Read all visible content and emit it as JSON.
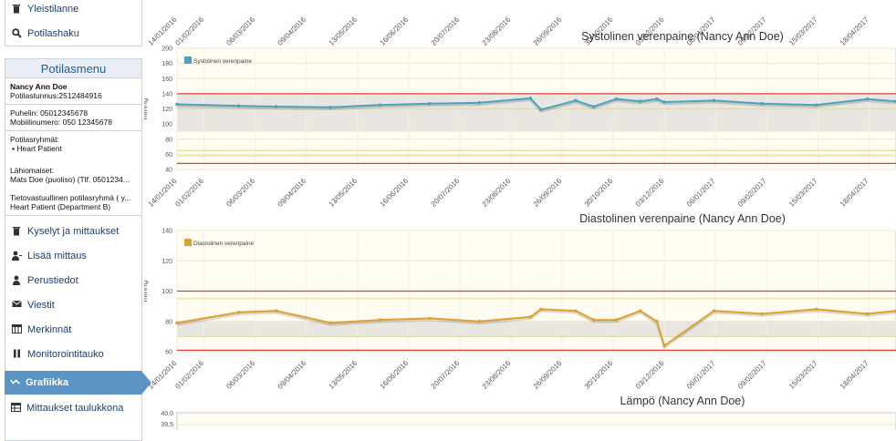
{
  "sidebar": {
    "top_items": [
      {
        "label": "Yleistilanne",
        "icon": "trash-icon"
      },
      {
        "label": "Potilashaku",
        "icon": "search-icon"
      }
    ],
    "patient_menu": {
      "title": "Potilasmenu",
      "name": "Nancy Ann Doe",
      "ssn": "Potilastunnus:2512484916",
      "phone": "Puhelin: 05012345678",
      "mobile": "Mobiilinumero: 050 12345678",
      "groups_label": "Potilasryhmät:",
      "group": "Heart Patient",
      "contacts_label": "Lähiomaiset:",
      "contact": "Mats Doe (puoliso) (Tlf. 0501234...",
      "responsible_label": "Tietovastuullinen potilasryhmä ( y...",
      "responsible": "Heart Patient (Department B)"
    },
    "items": [
      {
        "label": "Kyselyt ja mittaukset",
        "icon": "trash-icon"
      },
      {
        "label": "Lisää mittaus",
        "icon": "person-add-icon"
      },
      {
        "label": "Perustiedot",
        "icon": "person-icon"
      },
      {
        "label": "Viestit",
        "icon": "envelope-icon"
      },
      {
        "label": "Merkinnät",
        "icon": "notes-icon"
      },
      {
        "label": "Monitorointitauko",
        "icon": "pause-icon"
      },
      {
        "label": "Grafiikka",
        "icon": "chart-line-icon"
      },
      {
        "label": "Mittaukset taulukkona",
        "icon": "table-icon"
      }
    ]
  },
  "chart_data": [
    {
      "type": "line",
      "title": "Systolinen verenpaine (Nancy Ann Doe)",
      "ylabel": "mmHg",
      "legend": "Systolinen verenpaine",
      "legend_position": "top-left",
      "color": "#4aa3bf",
      "ylim": [
        40,
        200
      ],
      "yticks": [
        40,
        60,
        80,
        100,
        120,
        140,
        160,
        180,
        200
      ],
      "reference_lines": [
        {
          "value": 140,
          "color": "#d94040"
        },
        {
          "value": 48,
          "color": "#d94040"
        },
        {
          "value": 120,
          "color": "#f0e060"
        },
        {
          "value": 65,
          "color": "#f0e060"
        },
        {
          "value": 58,
          "color": "#f0e060"
        }
      ],
      "normal_band": [
        90,
        140
      ],
      "x_tick_labels": [
        "14/01/2016",
        "01/02/2016",
        "06/03/2016",
        "09/04/2016",
        "13/05/2016",
        "16/06/2016",
        "20/07/2016",
        "23/08/2016",
        "26/09/2016",
        "30/10/2016",
        "03/12/2016",
        "06/01/2017",
        "09/02/2017",
        "15/03/2017",
        "18/04/2017"
      ],
      "x": [
        "2016-01-14",
        "2016-02-24",
        "2016-03-20",
        "2016-04-25",
        "2016-05-28",
        "2016-06-30",
        "2016-08-02",
        "2016-09-05",
        "2016-09-12",
        "2016-10-05",
        "2016-10-17",
        "2016-11-01",
        "2016-11-17",
        "2016-11-28",
        "2016-12-03",
        "2017-01-05",
        "2017-02-06",
        "2017-03-14",
        "2017-04-17",
        "2017-05-06"
      ],
      "values": [
        126,
        124,
        123,
        122,
        125,
        127,
        128,
        134,
        119,
        131,
        123,
        133,
        130,
        133,
        129,
        131,
        127,
        125,
        133,
        130
      ]
    },
    {
      "type": "line",
      "title": "Diastolinen verenpaine (Nancy Ann Doe)",
      "ylabel": "mmHg",
      "legend": "Diastolinen verenpaine",
      "legend_position": "top-left",
      "color": "#e0a030",
      "ylim": [
        60,
        140
      ],
      "yticks": [
        60,
        80,
        100,
        120,
        140
      ],
      "reference_lines": [
        {
          "value": 100,
          "color": "#d94040"
        },
        {
          "value": 61,
          "color": "#d94040"
        },
        {
          "value": 95,
          "color": "#f0e060"
        },
        {
          "value": 70,
          "color": "#f0e060"
        }
      ],
      "normal_band": [
        70,
        80
      ],
      "x_tick_labels": [
        "14/01/2016",
        "01/02/2016",
        "06/03/2016",
        "09/04/2016",
        "13/05/2016",
        "16/06/2016",
        "20/07/2016",
        "23/08/2016",
        "26/09/2016",
        "30/10/2016",
        "03/12/2016",
        "06/01/2017",
        "09/02/2017",
        "15/03/2017",
        "18/04/2017"
      ],
      "x": [
        "2016-01-14",
        "2016-02-24",
        "2016-03-20",
        "2016-04-25",
        "2016-05-28",
        "2016-06-30",
        "2016-08-02",
        "2016-09-05",
        "2016-09-12",
        "2016-10-05",
        "2016-10-17",
        "2016-11-01",
        "2016-11-17",
        "2016-11-28",
        "2016-12-03",
        "2017-01-05",
        "2017-02-06",
        "2017-03-14",
        "2017-04-17",
        "2017-05-06"
      ],
      "values": [
        79,
        86,
        87,
        79,
        81,
        82,
        80,
        83,
        88,
        87,
        81,
        81,
        87,
        80,
        64,
        87,
        85,
        88,
        85,
        87
      ]
    },
    {
      "type": "line",
      "title": "Lämpö (Nancy Ann Doe)",
      "ylim": [
        39.5,
        40.0
      ],
      "ytick_labels": [
        "40,0",
        "39,5"
      ],
      "x_tick_labels": [
        "14/01/2016",
        "01/02/2016",
        "06/03/2016",
        "09/04/2016",
        "13/05/2016",
        "16/06/2016",
        "20/07/2016",
        "23/08/2016",
        "26/09/2016",
        "30/10/2016",
        "03/12/2016",
        "06/01/2017",
        "09/02/2017",
        "15/03/2017",
        "18/04/2017"
      ]
    }
  ]
}
